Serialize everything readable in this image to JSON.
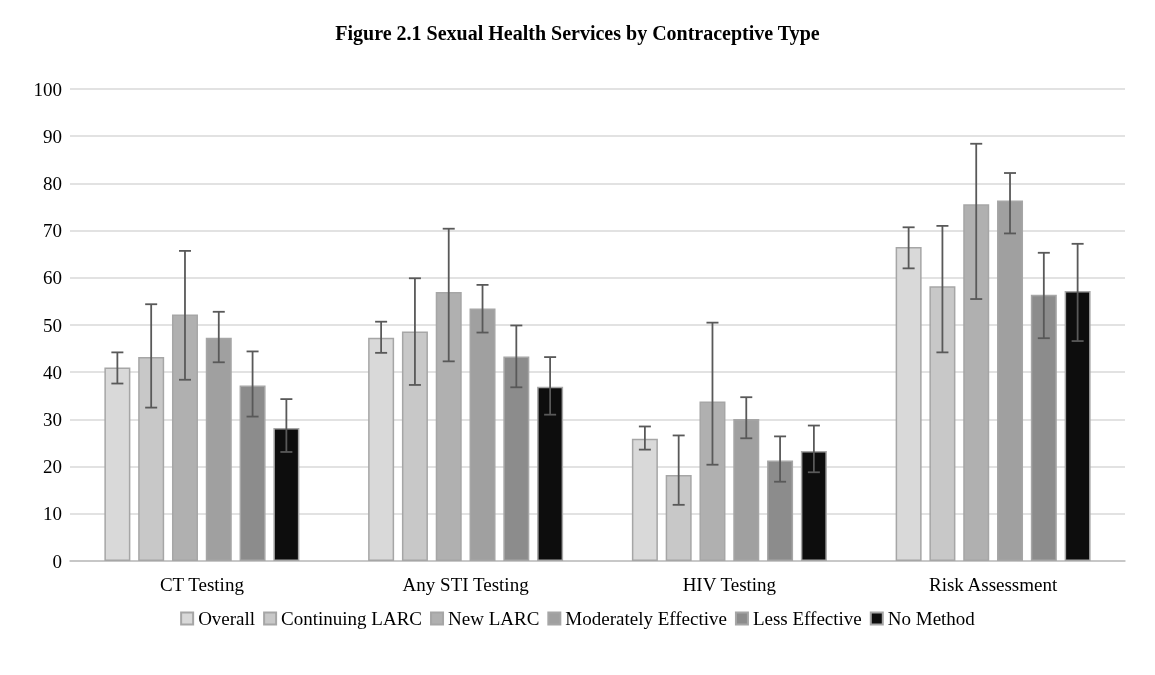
{
  "chart_data": {
    "type": "bar",
    "title": "Figure 2.1 Sexual Health Services by Contraceptive Type",
    "categories": [
      "CT Testing",
      "Any STI Testing",
      "HIV Testing",
      "Risk Assessment"
    ],
    "series": [
      {
        "name": "Overall",
        "color": "#d9d9d9",
        "values": [
          41,
          47.3,
          25.9,
          66.5
        ],
        "errors": [
          [
            37.6,
            44.2
          ],
          [
            44.1,
            50.7
          ],
          [
            23.6,
            28.5
          ],
          [
            62,
            70.7
          ]
        ]
      },
      {
        "name": "Continuing LARC",
        "color": "#c8c8c8",
        "values": [
          43.2,
          48.6,
          18.2,
          58.2
        ],
        "errors": [
          [
            32.5,
            54.4
          ],
          [
            37.3,
            59.9
          ],
          [
            11.9,
            26.6
          ],
          [
            44.2,
            71
          ]
        ]
      },
      {
        "name": "New LARC",
        "color": "#b0b0b0",
        "values": [
          52.2,
          57,
          33.8,
          75.6
        ],
        "errors": [
          [
            38.4,
            65.7
          ],
          [
            42.3,
            70.4
          ],
          [
            20.4,
            50.5
          ],
          [
            55.5,
            88.4
          ]
        ]
      },
      {
        "name": "Moderately Effective",
        "color": "#a0a0a0",
        "values": [
          47.3,
          53.5,
          30.1,
          76.4
        ],
        "errors": [
          [
            42.1,
            52.8
          ],
          [
            48.4,
            58.5
          ],
          [
            26,
            34.7
          ],
          [
            69.4,
            82.2
          ]
        ]
      },
      {
        "name": "Less Effective",
        "color": "#8c8c8c",
        "values": [
          37.2,
          43.3,
          21.3,
          56.4
        ],
        "errors": [
          [
            30.6,
            44.4
          ],
          [
            36.8,
            49.9
          ],
          [
            16.8,
            26.4
          ],
          [
            47.2,
            65.3
          ]
        ]
      },
      {
        "name": "No Method",
        "color": "#0d0d0d",
        "values": [
          28.2,
          36.9,
          23.3,
          57.2
        ],
        "errors": [
          [
            23.1,
            34.3
          ],
          [
            31,
            43.2
          ],
          [
            18.8,
            28.7
          ],
          [
            46.6,
            67.2
          ]
        ]
      }
    ],
    "ylim": [
      0,
      100
    ],
    "yticks": [
      0,
      10,
      20,
      30,
      40,
      50,
      60,
      70,
      80,
      90,
      100
    ],
    "grid": "y",
    "legend": "bottom"
  }
}
